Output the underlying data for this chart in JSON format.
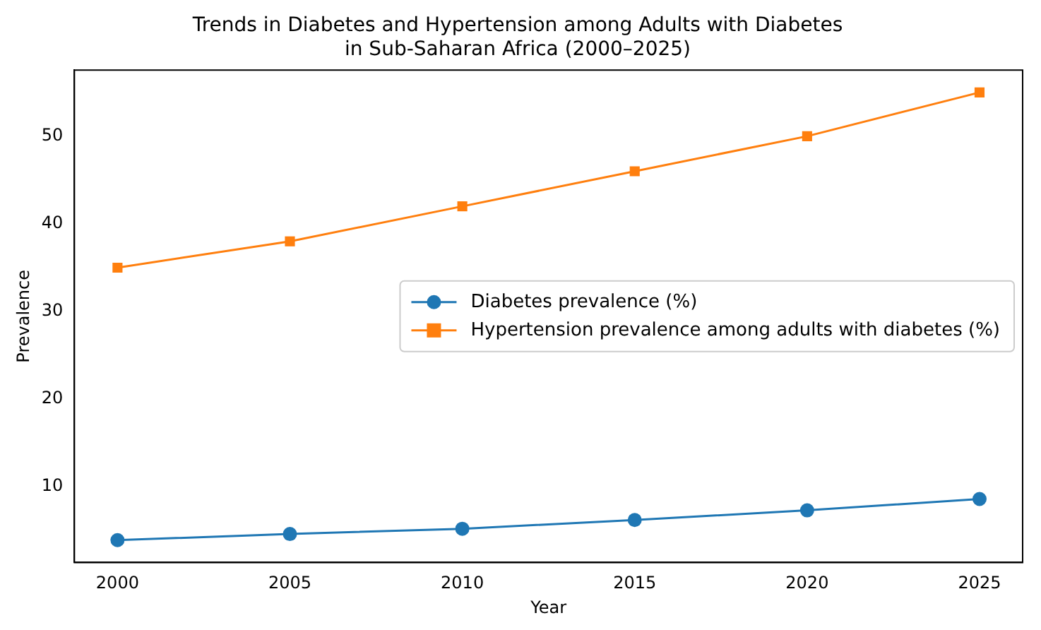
{
  "chart_data": {
    "type": "line",
    "title": "Trends in Diabetes and Hypertension among Adults with Diabetes\nin Sub-Saharan Africa (2000–2025)",
    "xlabel": "Year",
    "ylabel": "Prevalence",
    "x": [
      2000,
      2005,
      2010,
      2015,
      2020,
      2025
    ],
    "series": [
      {
        "name": "Diabetes prevalence (%)",
        "color": "#1f77b4",
        "values": [
          3.9,
          4.6,
          5.2,
          6.2,
          7.3,
          8.6
        ],
        "marker": "circle"
      },
      {
        "name": "Hypertension prevalence among adults with diabetes (%)",
        "color": "#ff7f0e",
        "values": [
          35,
          38,
          42,
          46,
          50,
          55
        ],
        "marker": "square"
      }
    ],
    "xlim": [
      1998.75,
      2026.25
    ],
    "xticks": [
      2000,
      2005,
      2010,
      2015,
      2020,
      2025
    ],
    "ylim": [
      1.35,
      57.55
    ],
    "yticks": [
      10,
      20,
      30,
      40,
      50
    ],
    "grid": false,
    "legend": "center right"
  }
}
